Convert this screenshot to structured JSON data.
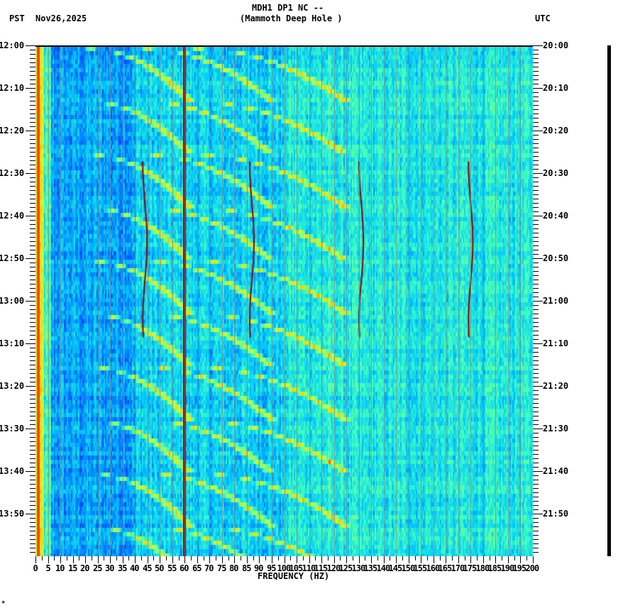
{
  "header": {
    "station": "MDH1 DP1 NC --",
    "location": "(Mammoth Deep Hole )",
    "left_tz": "PST",
    "date": "Nov26,2025",
    "right_tz": "UTC"
  },
  "footer_mark": "*",
  "chart_data": {
    "type": "heatmap",
    "title": "MDH1 DP1 NC -- (Mammoth Deep Hole )",
    "subtitle": "Nov26,2025",
    "xlabel": "FREQUENCY (HZ)",
    "ylabel_left": "PST",
    "ylabel_right": "UTC",
    "xlim": [
      0,
      200
    ],
    "x_ticks": [
      "0",
      "5",
      "10",
      "15",
      "20",
      "25",
      "30",
      "35",
      "40",
      "45",
      "50",
      "55",
      "60",
      "65",
      "70",
      "75",
      "80",
      "85",
      "90",
      "95",
      "100",
      "105",
      "110",
      "115",
      "120",
      "125",
      "130",
      "135",
      "140",
      "145",
      "150",
      "155",
      "160",
      "165",
      "170",
      "175",
      "180",
      "185",
      "190",
      "195",
      "200"
    ],
    "y_ticks_left": [
      "12:00",
      "12:10",
      "12:20",
      "12:30",
      "12:40",
      "12:50",
      "13:00",
      "13:10",
      "13:20",
      "13:30",
      "13:40",
      "13:50"
    ],
    "y_ticks_right": [
      "20:00",
      "20:10",
      "20:20",
      "20:30",
      "20:40",
      "20:50",
      "21:00",
      "21:10",
      "21:20",
      "21:30",
      "21:40",
      "21:50"
    ],
    "time_range_minutes": 120,
    "minor_tick_minutes": 1,
    "grid": {
      "vertical_every_hz": 5
    },
    "colormap": [
      "#00008f",
      "#0050ff",
      "#00c8ff",
      "#40ffbf",
      "#c0ff40",
      "#ffcc00",
      "#ff4000",
      "#8f0000"
    ],
    "features": [
      {
        "type": "constant_line",
        "freq_hz": 60,
        "color": "#8f0000",
        "note": "power line hum"
      },
      {
        "type": "constant_line",
        "freq_hz": 1,
        "color": "#ff4000",
        "note": "low-frequency energy"
      },
      {
        "type": "wandering_line",
        "freq_hz": 44,
        "start_min": 27,
        "end_min": 69
      },
      {
        "type": "wandering_line",
        "freq_hz": 87,
        "start_min": 27,
        "end_min": 69
      },
      {
        "type": "wandering_line",
        "freq_hz": 131,
        "start_min": 27,
        "end_min": 69
      },
      {
        "type": "wandering_line",
        "freq_hz": 175,
        "start_min": 27,
        "end_min": 69
      },
      {
        "type": "repeating_arcs",
        "period_min": 12.5,
        "note": "rising frequency sweeps starting near 22 Hz, 45 Hz, 65 Hz"
      }
    ]
  }
}
